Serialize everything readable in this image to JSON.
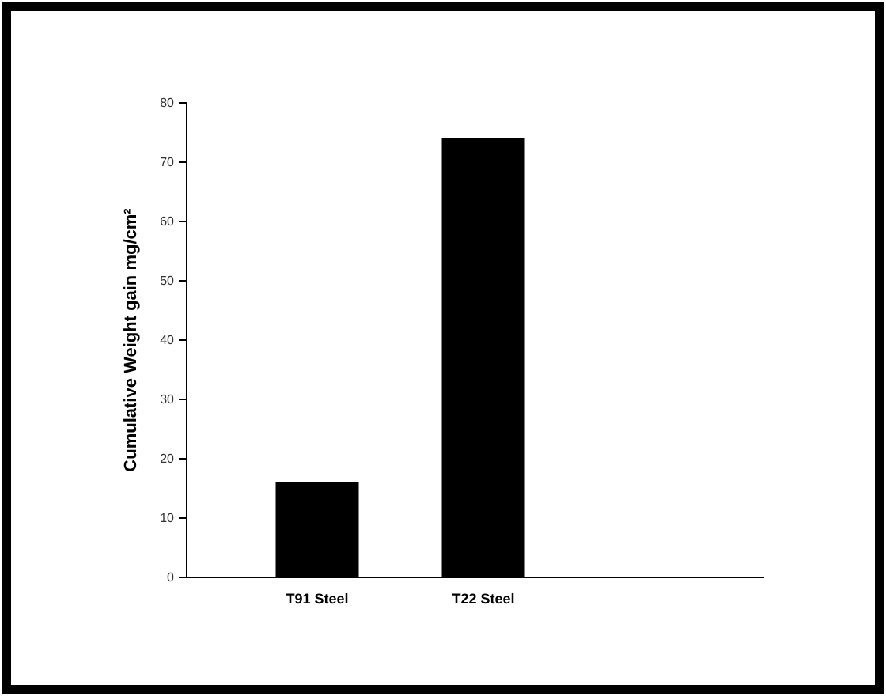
{
  "chart_data": {
    "type": "bar",
    "ylabel": "Cumulative Weight gain mg/cm²",
    "categories": [
      "T91 Steel",
      "T22 Steel"
    ],
    "values": [
      16,
      74
    ],
    "color": "#000000",
    "ylim": [
      0,
      80
    ],
    "yticks": [
      0,
      10,
      20,
      30,
      40,
      50,
      60,
      70,
      80
    ],
    "grid": false
  }
}
